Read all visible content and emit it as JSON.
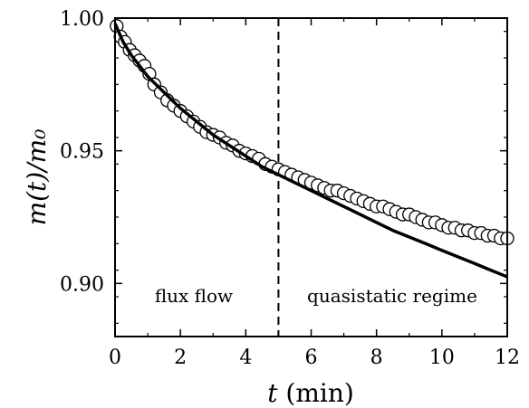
{
  "chart_data": {
    "type": "scatter",
    "xlabel_var": "t",
    "xlabel_unit": "(min)",
    "ylabel": "m(t)/m₀",
    "xlim": [
      0,
      12
    ],
    "ylim": [
      0.88,
      1.0
    ],
    "xticks": [
      0,
      2,
      4,
      6,
      8,
      10,
      12
    ],
    "xtick_labels": [
      "0",
      "2",
      "4",
      "6",
      "8",
      "10",
      "12"
    ],
    "yticks": [
      0.9,
      0.95,
      1.0
    ],
    "ytick_labels": [
      "0.90",
      "0.95",
      "1.00"
    ],
    "annotations": {
      "left_region": "flux flow",
      "right_region": "quasistatic regime",
      "divider_x": 5
    },
    "series": [
      {
        "style": "open-circles",
        "x": [
          0.05,
          0.17,
          0.3,
          0.45,
          0.6,
          0.75,
          0.9,
          1.05,
          1.2,
          1.4,
          1.6,
          1.8,
          2.0,
          2.2,
          2.4,
          2.6,
          2.8,
          3.0,
          3.2,
          3.4,
          3.6,
          3.8,
          4.0,
          4.2,
          4.4,
          4.6,
          4.8,
          5.0,
          5.2,
          5.4,
          5.6,
          5.8,
          6.0,
          6.2,
          6.4,
          6.6,
          6.8,
          7.0,
          7.2,
          7.4,
          7.6,
          7.8,
          8.0,
          8.2,
          8.4,
          8.6,
          8.8,
          9.0,
          9.2,
          9.4,
          9.6,
          9.8,
          10.0,
          10.2,
          10.4,
          10.6,
          10.8,
          11.0,
          11.2,
          11.4,
          11.6,
          11.8,
          12.0
        ],
        "y": [
          0.997,
          0.993,
          0.991,
          0.988,
          0.986,
          0.984,
          0.982,
          0.979,
          0.975,
          0.972,
          0.969,
          0.967,
          0.965,
          0.963,
          0.961,
          0.959,
          0.957,
          0.956,
          0.955,
          0.953,
          0.952,
          0.95,
          0.949,
          0.948,
          0.947,
          0.945,
          0.944,
          0.943,
          0.942,
          0.941,
          0.94,
          0.939,
          0.938,
          0.937,
          0.936,
          0.935,
          0.935,
          0.934,
          0.933,
          0.932,
          0.931,
          0.93,
          0.929,
          0.929,
          0.928,
          0.927,
          0.926,
          0.926,
          0.925,
          0.924,
          0.923,
          0.923,
          0.922,
          0.921,
          0.921,
          0.92,
          0.92,
          0.919,
          0.919,
          0.918,
          0.918,
          0.917,
          0.917
        ]
      },
      {
        "style": "solid-line",
        "x": [
          0,
          0.25,
          0.5,
          0.75,
          1.0,
          1.5,
          2.0,
          2.5,
          3.0,
          3.5,
          4.0,
          4.5,
          5.0,
          5.5,
          6.0,
          6.5,
          7.0,
          7.5,
          8.0,
          8.5,
          9.0,
          9.5,
          10.0,
          10.5,
          11.0,
          11.5,
          12.0
        ],
        "y": [
          0.998,
          0.991,
          0.986,
          0.982,
          0.978,
          0.972,
          0.966,
          0.961,
          0.956,
          0.952,
          0.948,
          0.944,
          0.941,
          0.938,
          0.935,
          0.932,
          0.929,
          0.926,
          0.923,
          0.92,
          0.9175,
          0.915,
          0.9125,
          0.91,
          0.9075,
          0.905,
          0.9025
        ]
      }
    ]
  }
}
